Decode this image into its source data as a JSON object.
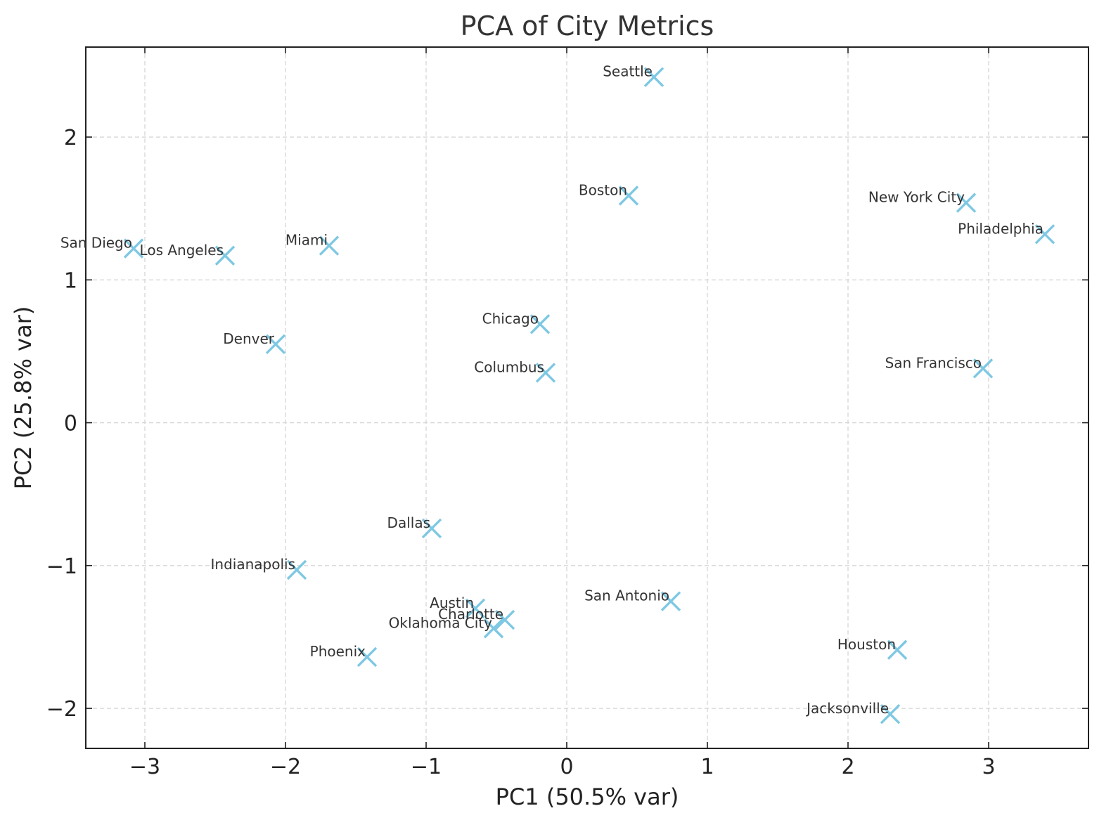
{
  "chart_data": {
    "type": "scatter",
    "title": "PCA of City Metrics",
    "xlabel": "PC1 (50.5% var)",
    "ylabel": "PC2 (25.8% var)",
    "xlim": [
      -3.42,
      3.71
    ],
    "ylim": [
      -2.28,
      2.63
    ],
    "xticks": [
      -3,
      -2,
      -1,
      0,
      1,
      2,
      3
    ],
    "yticks": [
      -2,
      -1,
      0,
      1,
      2
    ],
    "xtick_labels": [
      "−3",
      "−2",
      "−1",
      "0",
      "1",
      "2",
      "3"
    ],
    "ytick_labels": [
      "−2",
      "−1",
      "0",
      "1",
      "2"
    ],
    "grid": true,
    "marker": "x",
    "marker_color": "#7ec8e3",
    "series": [
      {
        "points": [
          {
            "label": "Seattle",
            "x": 0.62,
            "y": 2.42
          },
          {
            "label": "Boston",
            "x": 0.44,
            "y": 1.59
          },
          {
            "label": "New York City",
            "x": 2.84,
            "y": 1.54
          },
          {
            "label": "Philadelphia",
            "x": 3.4,
            "y": 1.32
          },
          {
            "label": "San Diego",
            "x": -3.08,
            "y": 1.22
          },
          {
            "label": "Los Angeles",
            "x": -2.43,
            "y": 1.17
          },
          {
            "label": "Miami",
            "x": -1.69,
            "y": 1.24
          },
          {
            "label": "Chicago",
            "x": -0.19,
            "y": 0.69
          },
          {
            "label": "Denver",
            "x": -2.07,
            "y": 0.55
          },
          {
            "label": "Columbus",
            "x": -0.15,
            "y": 0.35
          },
          {
            "label": "San Francisco",
            "x": 2.96,
            "y": 0.38
          },
          {
            "label": "Dallas",
            "x": -0.96,
            "y": -0.74
          },
          {
            "label": "Indianapolis",
            "x": -1.92,
            "y": -1.03
          },
          {
            "label": "San Antonio",
            "x": 0.74,
            "y": -1.25
          },
          {
            "label": "Austin",
            "x": -0.65,
            "y": -1.3
          },
          {
            "label": "Charlotte",
            "x": -0.44,
            "y": -1.38
          },
          {
            "label": "Oklahoma City",
            "x": -0.52,
            "y": -1.44
          },
          {
            "label": "Phoenix",
            "x": -1.42,
            "y": -1.64
          },
          {
            "label": "Houston",
            "x": 2.35,
            "y": -1.59
          },
          {
            "label": "Jacksonville",
            "x": 2.3,
            "y": -2.04
          }
        ]
      }
    ]
  }
}
